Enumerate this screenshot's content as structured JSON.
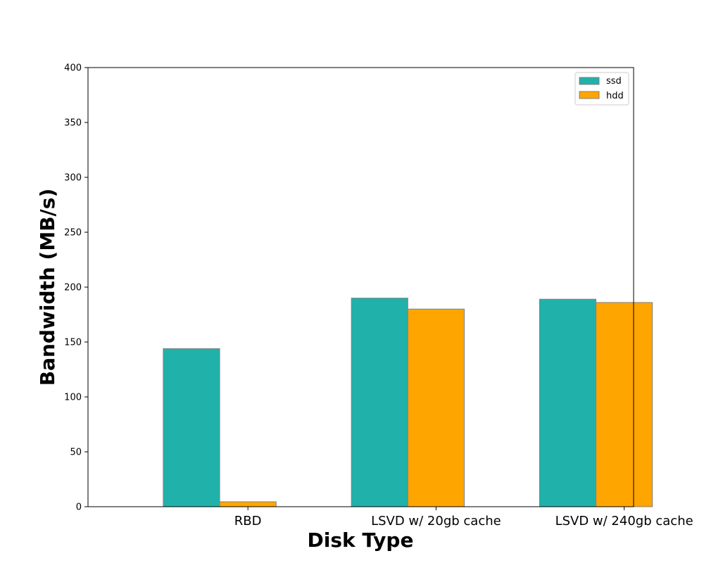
{
  "chart_data": {
    "type": "bar",
    "title": "",
    "xlabel": "Disk Type",
    "ylabel": "Bandwidth (MB/s)",
    "categories": [
      "RBD",
      "LSVD w/ 20gb cache",
      "LSVD w/ 240gb cache"
    ],
    "series": [
      {
        "name": "ssd",
        "values": [
          144,
          190,
          189
        ],
        "color": "#20b2aa"
      },
      {
        "name": "hdd",
        "values": [
          4.5,
          180,
          186
        ],
        "color": "#ffa500"
      }
    ],
    "ylim": [
      0,
      400
    ],
    "yticks": [
      0,
      50,
      100,
      150,
      200,
      250,
      300,
      350,
      400
    ],
    "grid": false,
    "legend": "top-right",
    "edge_color": "#808080"
  }
}
